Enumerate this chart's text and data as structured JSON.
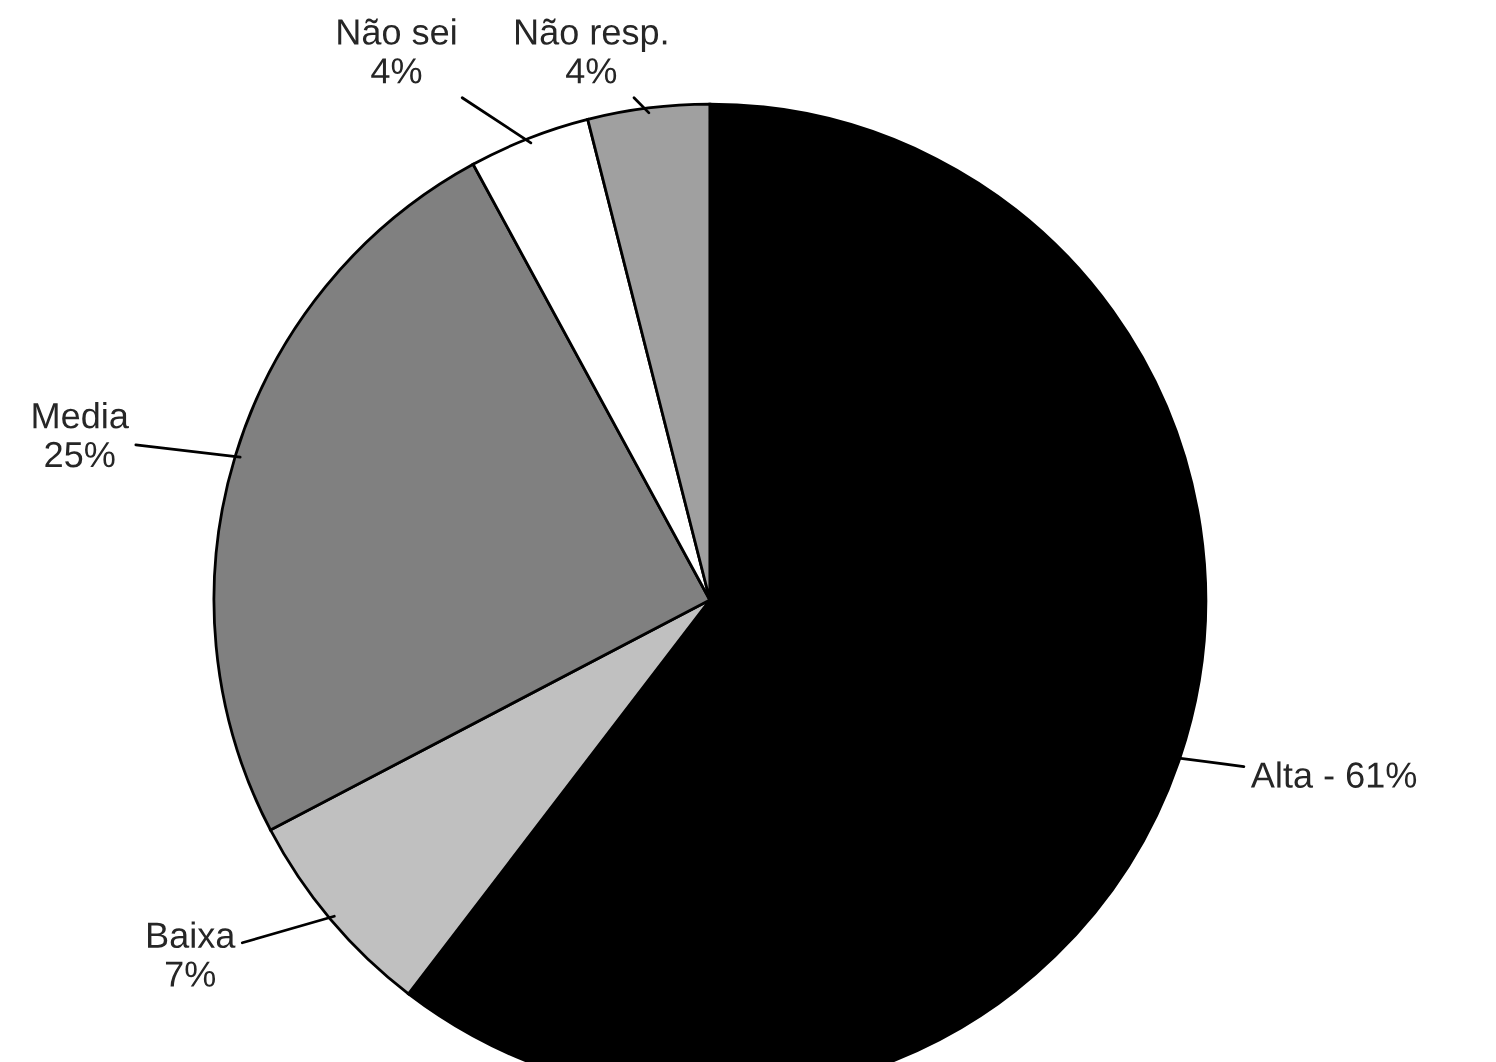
{
  "chart_data": {
    "type": "pie",
    "categories": [
      "Alta",
      "Baixa",
      "Media",
      "Não sei",
      "Não resp."
    ],
    "values": [
      61,
      7,
      25,
      4,
      4
    ],
    "value_labels": [
      "61%",
      "7%",
      "25%",
      "4%",
      "4%"
    ],
    "colors": [
      "#000000",
      "#c0c0c0",
      "#808080",
      "#ffffff",
      "#a0a0a0"
    ],
    "legend": false
  }
}
